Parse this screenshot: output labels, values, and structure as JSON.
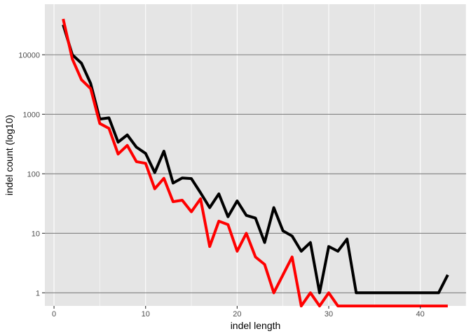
{
  "chart_data": {
    "type": "line",
    "title": "",
    "xlabel": "indel length",
    "ylabel": "indel count (log10)",
    "xlim": [
      -1,
      45
    ],
    "ylim_log10": [
      -0.22,
      4.85
    ],
    "y_scale": "log10",
    "x_ticks": [
      0,
      10,
      20,
      30,
      40
    ],
    "x_tick_labels": [
      "0",
      "10",
      "20",
      "30",
      "40"
    ],
    "y_ticks": [
      1,
      10,
      100,
      1000,
      10000
    ],
    "y_tick_labels": [
      "1",
      "10",
      "100",
      "1000",
      "10000"
    ],
    "grid": true,
    "legend": "none",
    "panel_color": "#e5e5e5",
    "grid_major_y_color": "#7f7f7f",
    "grid_major_x_color": "#ffffff",
    "series": [
      {
        "color": "#000000",
        "x": [
          1,
          2,
          3,
          4,
          5,
          6,
          7,
          8,
          9,
          10,
          11,
          12,
          13,
          14,
          15,
          16,
          17,
          18,
          19,
          20,
          21,
          22,
          23,
          24,
          25,
          26,
          27,
          28,
          29,
          30,
          31,
          32,
          33,
          34,
          35,
          36,
          37,
          38,
          39,
          40,
          41,
          42,
          43
        ],
        "y": [
          32000,
          10000,
          7200,
          3300,
          830,
          870,
          340,
          450,
          280,
          220,
          105,
          240,
          70,
          85,
          83,
          48,
          27,
          46,
          19,
          35,
          20,
          18,
          7,
          27,
          11,
          9,
          5,
          7,
          1,
          6,
          5,
          8,
          1,
          1,
          1,
          1,
          1,
          1,
          1,
          1,
          1,
          1,
          2
        ]
      },
      {
        "color": "#ff0000",
        "x": [
          1,
          2,
          3,
          4,
          5,
          6,
          7,
          8,
          9,
          10,
          11,
          12,
          13,
          14,
          15,
          16,
          17,
          18,
          19,
          20,
          21,
          22,
          23,
          24,
          25,
          26,
          27,
          28,
          29,
          30,
          31,
          32,
          33,
          34,
          35,
          36,
          37,
          38,
          39,
          40,
          41,
          42,
          43
        ],
        "y": [
          40000,
          8500,
          3800,
          2700,
          700,
          580,
          215,
          300,
          160,
          150,
          56,
          84,
          34,
          36,
          23,
          38,
          6,
          16,
          14,
          5,
          10,
          4,
          3,
          1,
          2,
          4,
          0.6,
          1,
          0.6,
          1,
          0.6,
          0.6,
          0.6,
          0.6,
          0.6,
          0.6,
          0.6,
          0.6,
          0.6,
          0.6,
          0.6,
          0.6,
          0.6
        ]
      }
    ]
  }
}
